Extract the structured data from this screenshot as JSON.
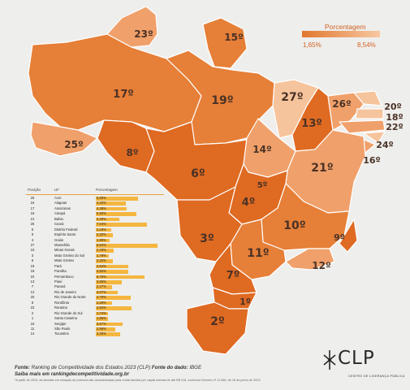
{
  "legend": {
    "title": "Porcentagem",
    "min": "1,65%",
    "max": "8,54%"
  },
  "colors": {
    "dark": "#df6a22",
    "mid": "#e67f37",
    "light": "#f0a06a",
    "lighter": "#f6c49c",
    "bar": "#f4b63e"
  },
  "map_labels": [
    {
      "state": "AM",
      "rank": "17º",
      "pct": "4,28%"
    },
    {
      "state": "PA",
      "rank": "19º",
      "pct": "4,54%"
    },
    {
      "state": "RR",
      "rank": "23º",
      "pct": "4,94%"
    },
    {
      "state": "AP",
      "rank": "15º",
      "pct": "5,60%"
    },
    {
      "state": "AC",
      "rank": "25º",
      "pct": "5,80%"
    },
    {
      "state": "RO",
      "rank": "8º",
      "pct": "2,29%"
    },
    {
      "state": "MT",
      "rank": "6º",
      "pct": "2,32%"
    },
    {
      "state": "TO",
      "rank": "14º",
      "pct": "3,35%"
    },
    {
      "state": "MA",
      "rank": "27º",
      "pct": "8,54%"
    },
    {
      "state": "PI",
      "rank": "13º",
      "pct": "3,65%"
    },
    {
      "state": "CE",
      "rank": "26º",
      "pct": "7,04%"
    },
    {
      "state": "RN",
      "rank": "20º",
      "pct": "4,78%"
    },
    {
      "state": "PB",
      "rank": "18º",
      "pct": "4,52%"
    },
    {
      "state": "PE",
      "rank": "22º",
      "pct": "6,76%"
    },
    {
      "state": "AL",
      "rank": "24º",
      "pct": "4,15%"
    },
    {
      "state": "SE",
      "rank": "16º",
      "pct": "3,67%"
    },
    {
      "state": "BA",
      "rank": "21º",
      "pct": "3,29%"
    },
    {
      "state": "DF",
      "rank": "5º",
      "pct": "2,19%"
    },
    {
      "state": "GO",
      "rank": "4º",
      "pct": "1,89%"
    },
    {
      "state": "MG",
      "rank": "10º",
      "pct": "2,43%"
    },
    {
      "state": "MS",
      "rank": "3º",
      "pct": "1,79%"
    },
    {
      "state": "ES",
      "rank": "9º",
      "pct": "2,32%"
    },
    {
      "state": "RJ",
      "rank": "12º",
      "pct": "3,07%"
    },
    {
      "state": "SP",
      "rank": "11º",
      "pct": "2,66%"
    },
    {
      "state": "PR",
      "rank": "7º",
      "pct": "2,27%"
    },
    {
      "state": "SC",
      "rank": "1º",
      "pct": "1,65%"
    },
    {
      "state": "RS",
      "rank": "2º",
      "pct": "1,74%"
    }
  ],
  "table": {
    "headers": [
      "Posição",
      "UF",
      "Porcentagem"
    ],
    "rows": [
      {
        "pos": "25",
        "uf": "Acre",
        "pct": "5,80%",
        "v": 5.8
      },
      {
        "pos": "24",
        "uf": "Alagoas",
        "pct": "4,15%",
        "v": 4.15
      },
      {
        "pos": "17",
        "uf": "Amazonas",
        "pct": "4,28%",
        "v": 4.28
      },
      {
        "pos": "15",
        "uf": "Amapá",
        "pct": "5,60%",
        "v": 5.6
      },
      {
        "pos": "21",
        "uf": "Bahia",
        "pct": "3,29%",
        "v": 3.29
      },
      {
        "pos": "26",
        "uf": "Ceará",
        "pct": "7,04%",
        "v": 7.04
      },
      {
        "pos": "5",
        "uf": "Distrito Federal",
        "pct": "2,19%",
        "v": 2.19
      },
      {
        "pos": "9",
        "uf": "Espírito Santo",
        "pct": "2,32%",
        "v": 2.32
      },
      {
        "pos": "4",
        "uf": "Goiás",
        "pct": "1,89%",
        "v": 1.89
      },
      {
        "pos": "27",
        "uf": "Maranhão",
        "pct": "8,54%",
        "v": 8.54
      },
      {
        "pos": "10",
        "uf": "Minas Gerais",
        "pct": "2,43%",
        "v": 2.43
      },
      {
        "pos": "3",
        "uf": "Mato Grosso do Sul",
        "pct": "1,79%",
        "v": 1.79
      },
      {
        "pos": "6",
        "uf": "Mato Grosso",
        "pct": "2,32%",
        "v": 2.32
      },
      {
        "pos": "19",
        "uf": "Pará",
        "pct": "4,54%",
        "v": 4.54
      },
      {
        "pos": "18",
        "uf": "Paraíba",
        "pct": "4,52%",
        "v": 4.52
      },
      {
        "pos": "22",
        "uf": "Pernambuco",
        "pct": "6,76%",
        "v": 6.76
      },
      {
        "pos": "13",
        "uf": "Piauí",
        "pct": "3,65%",
        "v": 3.65
      },
      {
        "pos": "7",
        "uf": "Paraná",
        "pct": "2,27%",
        "v": 2.27
      },
      {
        "pos": "12",
        "uf": "Rio de Janeiro",
        "pct": "3,07%",
        "v": 3.07
      },
      {
        "pos": "20",
        "uf": "Rio Grande do Norte",
        "pct": "4,78%",
        "v": 4.78
      },
      {
        "pos": "8",
        "uf": "Rondônia",
        "pct": "2,29%",
        "v": 2.29
      },
      {
        "pos": "23",
        "uf": "Roraima",
        "pct": "4,94%",
        "v": 4.94
      },
      {
        "pos": "2",
        "uf": "Rio Grande do Sul",
        "pct": "1,74%",
        "v": 1.74
      },
      {
        "pos": "1",
        "uf": "Santa Catarina",
        "pct": "1,65%",
        "v": 1.65
      },
      {
        "pos": "16",
        "uf": "Sergipe",
        "pct": "3,67%",
        "v": 3.67
      },
      {
        "pos": "11",
        "uf": "São Paulo",
        "pct": "2,66%",
        "v": 2.66
      },
      {
        "pos": "14",
        "uf": "Tocantins",
        "pct": "3,35%",
        "v": 3.35
      }
    ]
  },
  "footer": {
    "source_label": "Fonte:",
    "source_text": "Ranking de Competitividade dos Estados 2023 (CLP)",
    "data_label": "Fonte do dado:",
    "data_source": "IBGE",
    "site": "Saiba mais em rankingdecompetitividade.org.br",
    "note": "*A partir de 2023, as famílias em situação de pobreza são caracterizadas pela renda familiar per capita mensal de até R$ 218, conforme Decreto nº 11.566, de 16 de junho de 2023."
  },
  "logo": {
    "text": "CLP",
    "sub": "CENTRO DE LIDERANÇA PÚBLICA"
  }
}
